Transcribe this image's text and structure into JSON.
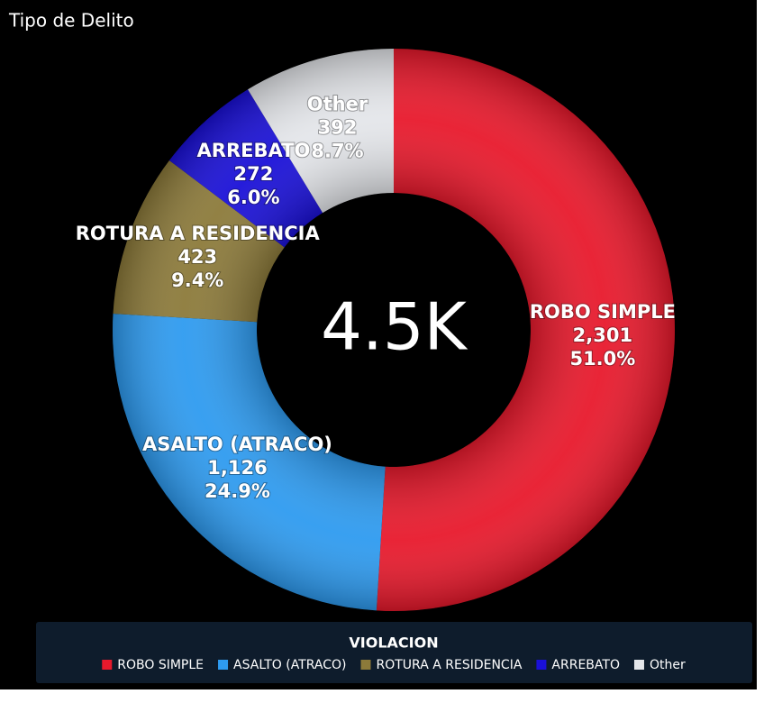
{
  "chart_data": {
    "type": "donut",
    "title": "Tipo de Delito",
    "center_label": "4.5K",
    "categories": [
      "ROBO SIMPLE",
      "ASALTO (ATRACO)",
      "ROTURA A RESIDENCIA",
      "ARREBATO",
      "Other"
    ],
    "values": [
      2301,
      1126,
      423,
      272,
      392
    ],
    "value_labels": [
      "2,301",
      "1,126",
      "423",
      "272",
      "392"
    ],
    "percent_labels": [
      "51.0%",
      "24.9%",
      "9.4%",
      "6.0%",
      "8.7%"
    ],
    "colors": [
      "#e8192c",
      "#2e9bf0",
      "#8c7a3a",
      "#1a10d8",
      "#e4e6ea"
    ],
    "legend_title": "VIOLACION",
    "legend": "bottom"
  }
}
